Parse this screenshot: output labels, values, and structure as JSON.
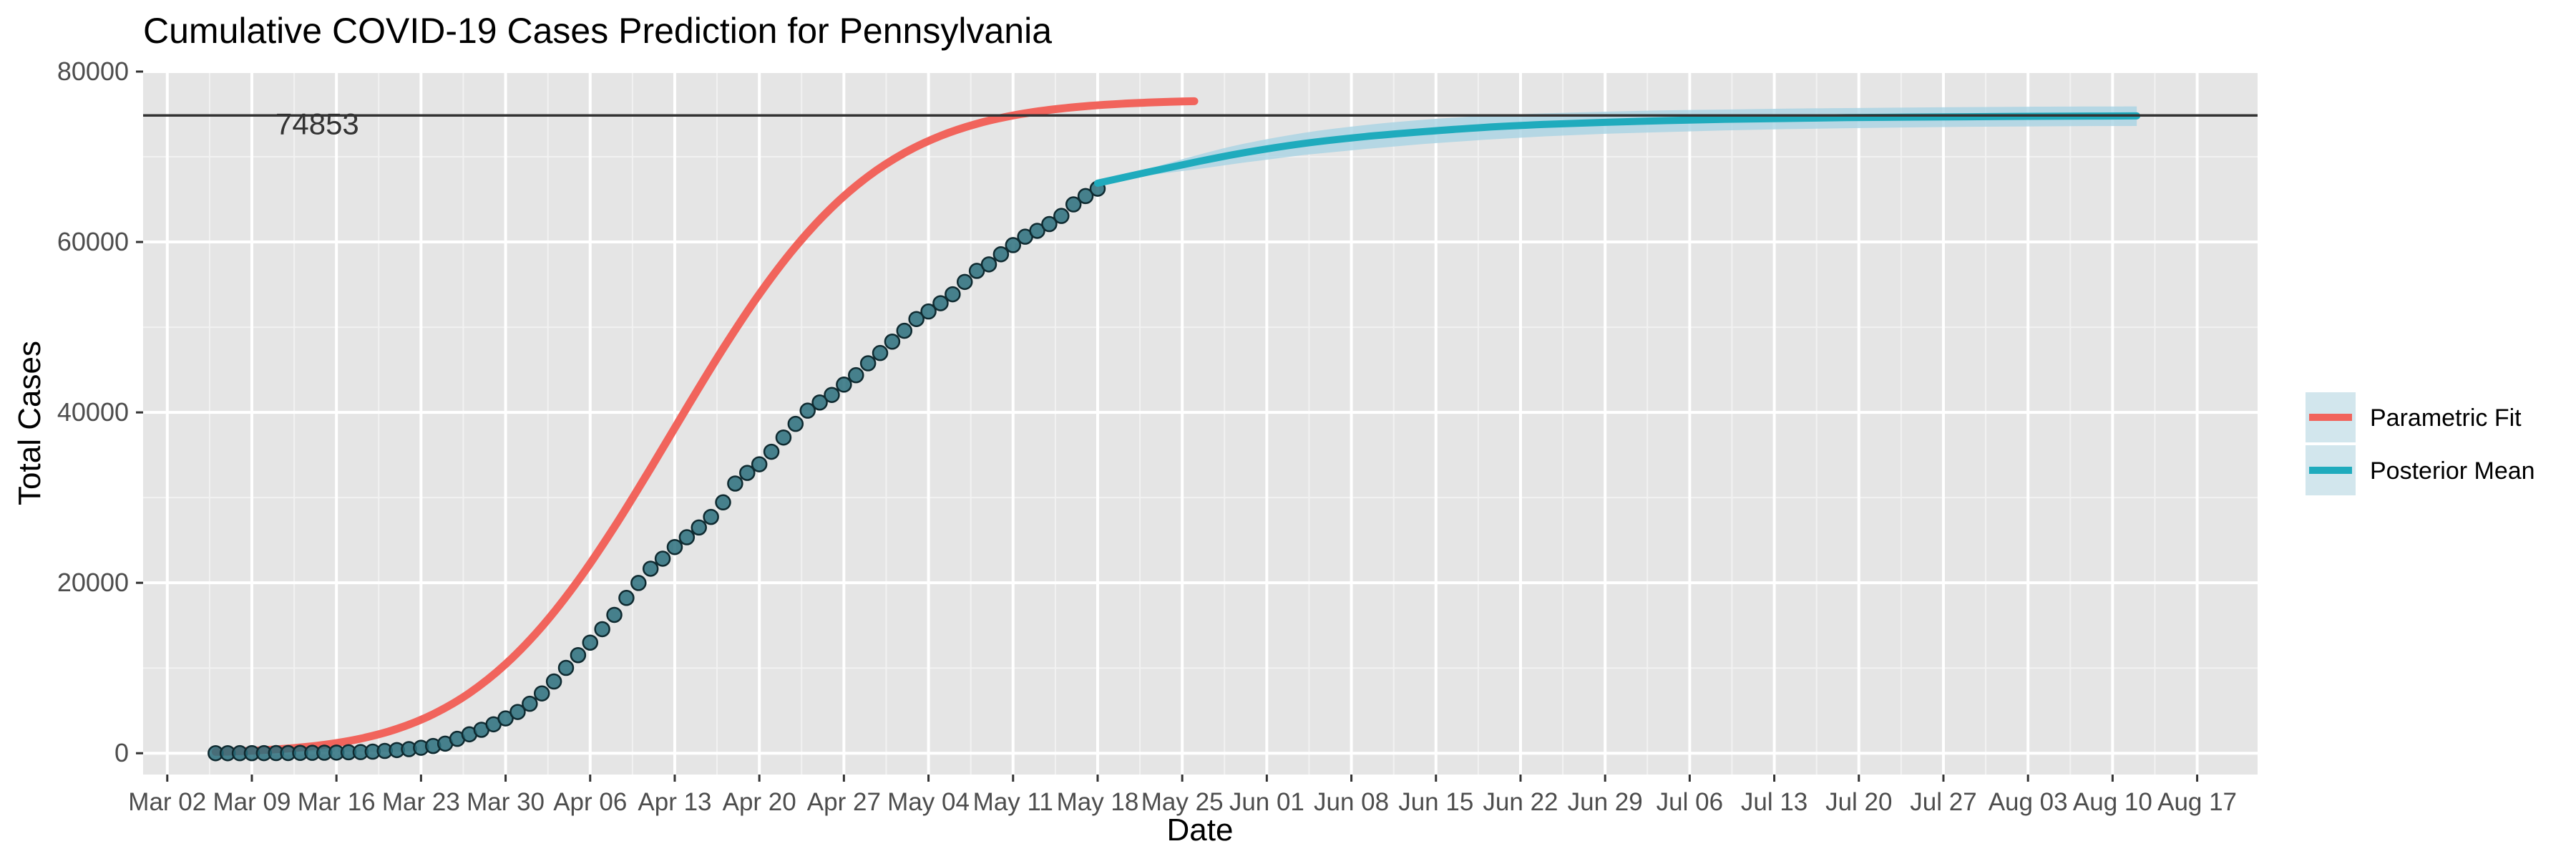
{
  "chart_data": {
    "type": "line",
    "title": "Cumulative COVID-19 Cases Prediction for Pennsylvania",
    "xlabel": "Date",
    "ylabel": "Total Cases",
    "year": 2020,
    "x_axis": {
      "type": "date",
      "range": [
        "2020-02-29",
        "2020-08-22"
      ],
      "ticks": [
        {
          "date": "2020-03-02",
          "label": "Mar 02"
        },
        {
          "date": "2020-03-09",
          "label": "Mar 09"
        },
        {
          "date": "2020-03-16",
          "label": "Mar 16"
        },
        {
          "date": "2020-03-23",
          "label": "Mar 23"
        },
        {
          "date": "2020-03-30",
          "label": "Mar 30"
        },
        {
          "date": "2020-04-06",
          "label": "Apr 06"
        },
        {
          "date": "2020-04-13",
          "label": "Apr 13"
        },
        {
          "date": "2020-04-20",
          "label": "Apr 20"
        },
        {
          "date": "2020-04-27",
          "label": "Apr 27"
        },
        {
          "date": "2020-05-04",
          "label": "May 04"
        },
        {
          "date": "2020-05-11",
          "label": "May 11"
        },
        {
          "date": "2020-05-18",
          "label": "May 18"
        },
        {
          "date": "2020-05-25",
          "label": "May 25"
        },
        {
          "date": "2020-06-01",
          "label": "Jun 01"
        },
        {
          "date": "2020-06-08",
          "label": "Jun 08"
        },
        {
          "date": "2020-06-15",
          "label": "Jun 15"
        },
        {
          "date": "2020-06-22",
          "label": "Jun 22"
        },
        {
          "date": "2020-06-29",
          "label": "Jun 29"
        },
        {
          "date": "2020-07-06",
          "label": "Jul 06"
        },
        {
          "date": "2020-07-13",
          "label": "Jul 13"
        },
        {
          "date": "2020-07-20",
          "label": "Jul 20"
        },
        {
          "date": "2020-07-27",
          "label": "Jul 27"
        },
        {
          "date": "2020-08-03",
          "label": "Aug 03"
        },
        {
          "date": "2020-08-10",
          "label": "Aug 10"
        },
        {
          "date": "2020-08-17",
          "label": "Aug 17"
        }
      ]
    },
    "y_axis": {
      "range": [
        -2500,
        80000
      ],
      "ticks": [
        0,
        20000,
        40000,
        60000,
        80000
      ],
      "tick_labels": [
        "0",
        "20000",
        "40000",
        "60000",
        "80000"
      ]
    },
    "grid": true,
    "background": "#e5e5e5",
    "reference_line": {
      "y": 74853,
      "label": "74853",
      "color": "#333333"
    },
    "legend": {
      "position": "right",
      "entries": [
        {
          "label": "Parametric Fit",
          "color": "#f1645c"
        },
        {
          "label": "Posterior Mean",
          "color": "#1fabbd"
        }
      ]
    },
    "series": [
      {
        "name": "Observed",
        "kind": "points",
        "color": "#1f5f6c",
        "x": [
          "2020-03-06",
          "2020-03-07",
          "2020-03-08",
          "2020-03-09",
          "2020-03-10",
          "2020-03-11",
          "2020-03-12",
          "2020-03-13",
          "2020-03-14",
          "2020-03-15",
          "2020-03-16",
          "2020-03-17",
          "2020-03-18",
          "2020-03-19",
          "2020-03-20",
          "2020-03-21",
          "2020-03-22",
          "2020-03-23",
          "2020-03-24",
          "2020-03-25",
          "2020-03-26",
          "2020-03-27",
          "2020-03-28",
          "2020-03-29",
          "2020-03-30",
          "2020-03-31",
          "2020-04-01",
          "2020-04-02",
          "2020-04-03",
          "2020-04-04",
          "2020-04-05",
          "2020-04-06",
          "2020-04-07",
          "2020-04-08",
          "2020-04-09",
          "2020-04-10",
          "2020-04-11",
          "2020-04-12",
          "2020-04-13",
          "2020-04-14",
          "2020-04-15",
          "2020-04-16",
          "2020-04-17",
          "2020-04-18",
          "2020-04-19",
          "2020-04-20",
          "2020-04-21",
          "2020-04-22",
          "2020-04-23",
          "2020-04-24",
          "2020-04-25",
          "2020-04-26",
          "2020-04-27",
          "2020-04-28",
          "2020-04-29",
          "2020-04-30",
          "2020-05-01",
          "2020-05-02",
          "2020-05-03",
          "2020-05-04",
          "2020-05-05",
          "2020-05-06",
          "2020-05-07",
          "2020-05-08",
          "2020-05-09",
          "2020-05-10",
          "2020-05-11",
          "2020-05-12",
          "2020-05-13",
          "2020-05-14",
          "2020-05-15",
          "2020-05-16",
          "2020-05-17",
          "2020-05-18"
        ],
        "y": [
          2,
          4,
          6,
          10,
          12,
          16,
          22,
          41,
          47,
          63,
          76,
          112,
          133,
          185,
          268,
          371,
          479,
          644,
          851,
          1127,
          1687,
          2218,
          2751,
          3394,
          4087,
          4843,
          5805,
          7016,
          8420,
          10017,
          11510,
          12980,
          14559,
          16239,
          18228,
          19979,
          21655,
          22833,
          24199,
          25345,
          26490,
          27735,
          29441,
          31652,
          32902,
          33914,
          35384,
          37053,
          38652,
          40208,
          41165,
          42050,
          43264,
          44366,
          45763,
          46971,
          48305,
          49579,
          50957,
          51845,
          52816,
          53864,
          55316,
          56611,
          57371,
          58560,
          59636,
          60622,
          61310,
          62101,
          63056,
          64412,
          65392,
          66258
        ]
      },
      {
        "name": "Parametric Fit",
        "kind": "line",
        "color": "#f1645c",
        "x": [
          "2020-03-06",
          "2020-03-09",
          "2020-03-12",
          "2020-03-15",
          "2020-03-18",
          "2020-03-21",
          "2020-03-24",
          "2020-03-27",
          "2020-03-30",
          "2020-04-02",
          "2020-04-05",
          "2020-04-08",
          "2020-04-11",
          "2020-04-14",
          "2020-04-17",
          "2020-04-20",
          "2020-04-23",
          "2020-04-26",
          "2020-04-29",
          "2020-05-02",
          "2020-05-05",
          "2020-05-08",
          "2020-05-11",
          "2020-05-14",
          "2020-05-17",
          "2020-05-20",
          "2020-05-23",
          "2020-05-26"
        ],
        "y": [
          155,
          298,
          554,
          993,
          1715,
          2855,
          4578,
          7057,
          10450,
          14854,
          20263,
          26544,
          33428,
          40546,
          47487,
          53880,
          59450,
          64057,
          67694,
          70447,
          72454,
          73871,
          74847,
          75504,
          75939,
          76224,
          76409,
          76528
        ]
      },
      {
        "name": "Posterior Mean",
        "kind": "line",
        "color": "#1fabbd",
        "x": [
          "2020-05-18",
          "2020-05-22",
          "2020-05-26",
          "2020-05-30",
          "2020-06-04",
          "2020-06-09",
          "2020-06-14",
          "2020-06-19",
          "2020-06-24",
          "2020-06-29",
          "2020-07-04",
          "2020-07-09",
          "2020-07-14",
          "2020-07-19",
          "2020-07-24",
          "2020-07-29",
          "2020-08-03",
          "2020-08-08",
          "2020-08-12"
        ],
        "y": [
          66900,
          68150,
          69350,
          70450,
          71550,
          72350,
          72950,
          73450,
          73800,
          74050,
          74250,
          74400,
          74500,
          74600,
          74650,
          74700,
          74750,
          74780,
          74800
        ],
        "band_lower": [
          66900,
          67800,
          68500,
          69300,
          70200,
          70900,
          71500,
          72000,
          72400,
          72700,
          72900,
          73100,
          73250,
          73350,
          73450,
          73520,
          73560,
          73600,
          73620
        ],
        "band_upper": [
          66900,
          68500,
          70100,
          71500,
          72800,
          73700,
          74350,
          74800,
          75100,
          75300,
          75450,
          75550,
          75650,
          75720,
          75780,
          75830,
          75870,
          75900,
          75920
        ]
      }
    ]
  }
}
